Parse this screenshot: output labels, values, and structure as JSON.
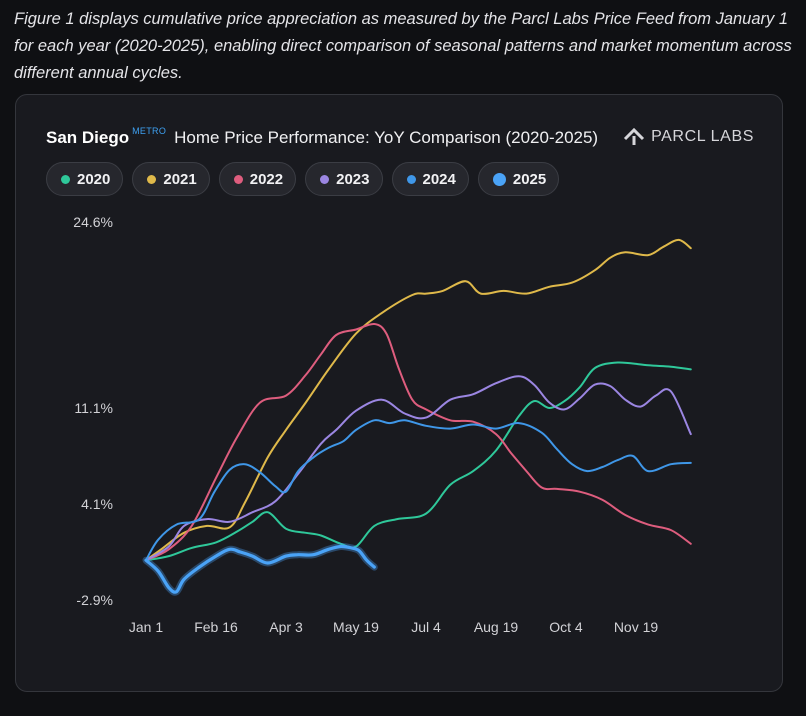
{
  "caption": "Figure 1 displays cumulative price appreciation as measured by the Parcl Labs Price Feed from January 1 for each year (2020-2025), enabling direct comparison of seasonal patterns and market momentum across different annual cycles.",
  "header": {
    "city": "San Diego",
    "badge": "METRO",
    "title": "Home Price Performance: YoY Comparison (2020-2025)"
  },
  "logo": {
    "text": "PARCL LABS",
    "icon": "parcl-labs-logo-icon"
  },
  "chart_data": {
    "type": "line",
    "xlabel": "",
    "ylabel": "",
    "x_ticks": [
      {
        "label": "Jan 1",
        "day": 0
      },
      {
        "label": "Feb 16",
        "day": 46
      },
      {
        "label": "Apr 3",
        "day": 92
      },
      {
        "label": "May 19",
        "day": 138
      },
      {
        "label": "Jul 4",
        "day": 184
      },
      {
        "label": "Aug 19",
        "day": 230
      },
      {
        "label": "Oct 4",
        "day": 276
      },
      {
        "label": "Nov 19",
        "day": 322
      }
    ],
    "y_ticks": [
      {
        "label": "24.6%",
        "value": 24.6
      },
      {
        "label": "11.1%",
        "value": 11.1
      },
      {
        "label": "4.1%",
        "value": 4.1
      },
      {
        "label": "-2.9%",
        "value": -2.9
      }
    ],
    "xlim": [
      0,
      362
    ],
    "grid": false,
    "legend_position": "top-left",
    "series": [
      {
        "name": "2020",
        "color": "#2fc89a",
        "highlight": false,
        "points": [
          [
            0,
            0
          ],
          [
            15,
            0.3
          ],
          [
            30,
            0.9
          ],
          [
            46,
            1.3
          ],
          [
            60,
            2.1
          ],
          [
            70,
            2.8
          ],
          [
            80,
            3.5
          ],
          [
            92,
            2.3
          ],
          [
            105,
            2.0
          ],
          [
            115,
            1.8
          ],
          [
            128,
            1.2
          ],
          [
            138,
            1.0
          ],
          [
            150,
            2.5
          ],
          [
            165,
            3.0
          ],
          [
            184,
            3.4
          ],
          [
            200,
            5.5
          ],
          [
            215,
            6.5
          ],
          [
            230,
            8.0
          ],
          [
            245,
            10.5
          ],
          [
            255,
            11.6
          ],
          [
            265,
            11.1
          ],
          [
            275,
            11.6
          ],
          [
            285,
            12.6
          ],
          [
            295,
            14.0
          ],
          [
            310,
            14.4
          ],
          [
            330,
            14.2
          ],
          [
            345,
            14.1
          ],
          [
            358,
            13.9
          ]
        ]
      },
      {
        "name": "2021",
        "color": "#dfb94a",
        "highlight": false,
        "points": [
          [
            0,
            0
          ],
          [
            10,
            0.8
          ],
          [
            25,
            2.0
          ],
          [
            40,
            2.5
          ],
          [
            55,
            2.4
          ],
          [
            65,
            4.2
          ],
          [
            80,
            7.5
          ],
          [
            92,
            9.5
          ],
          [
            105,
            11.5
          ],
          [
            120,
            13.9
          ],
          [
            138,
            16.5
          ],
          [
            155,
            18.0
          ],
          [
            175,
            19.3
          ],
          [
            184,
            19.4
          ],
          [
            195,
            19.6
          ],
          [
            210,
            20.3
          ],
          [
            220,
            19.4
          ],
          [
            235,
            19.6
          ],
          [
            250,
            19.4
          ],
          [
            265,
            19.9
          ],
          [
            280,
            20.2
          ],
          [
            295,
            21.1
          ],
          [
            305,
            22.0
          ],
          [
            315,
            22.4
          ],
          [
            330,
            22.2
          ],
          [
            340,
            22.8
          ],
          [
            350,
            23.3
          ],
          [
            358,
            22.7
          ]
        ]
      },
      {
        "name": "2022",
        "color": "#de5d7e",
        "highlight": false,
        "points": [
          [
            0,
            0
          ],
          [
            15,
            0.8
          ],
          [
            30,
            2.5
          ],
          [
            46,
            6.0
          ],
          [
            60,
            9.0
          ],
          [
            75,
            11.5
          ],
          [
            92,
            12.0
          ],
          [
            105,
            13.5
          ],
          [
            115,
            15.0
          ],
          [
            125,
            16.4
          ],
          [
            138,
            16.8
          ],
          [
            150,
            17.2
          ],
          [
            158,
            16.5
          ],
          [
            166,
            14.0
          ],
          [
            175,
            11.7
          ],
          [
            184,
            11.0
          ],
          [
            200,
            10.2
          ],
          [
            215,
            10.1
          ],
          [
            230,
            9.2
          ],
          [
            240,
            7.8
          ],
          [
            250,
            6.5
          ],
          [
            260,
            5.3
          ],
          [
            270,
            5.2
          ],
          [
            285,
            5.0
          ],
          [
            300,
            4.4
          ],
          [
            315,
            3.3
          ],
          [
            330,
            2.6
          ],
          [
            345,
            2.2
          ],
          [
            358,
            1.2
          ]
        ]
      },
      {
        "name": "2023",
        "color": "#9b86e2",
        "highlight": false,
        "points": [
          [
            0,
            0
          ],
          [
            15,
            1.0
          ],
          [
            25,
            2.5
          ],
          [
            40,
            3.0
          ],
          [
            55,
            2.8
          ],
          [
            70,
            3.5
          ],
          [
            85,
            4.3
          ],
          [
            100,
            6.3
          ],
          [
            115,
            8.5
          ],
          [
            125,
            9.5
          ],
          [
            138,
            10.9
          ],
          [
            155,
            11.7
          ],
          [
            170,
            10.7
          ],
          [
            184,
            10.4
          ],
          [
            200,
            11.7
          ],
          [
            215,
            12.1
          ],
          [
            230,
            12.9
          ],
          [
            245,
            13.4
          ],
          [
            255,
            12.8
          ],
          [
            265,
            11.5
          ],
          [
            275,
            11.0
          ],
          [
            285,
            11.8
          ],
          [
            295,
            12.8
          ],
          [
            305,
            12.7
          ],
          [
            315,
            11.7
          ],
          [
            325,
            11.2
          ],
          [
            335,
            12.0
          ],
          [
            345,
            12.3
          ],
          [
            358,
            9.2
          ]
        ]
      },
      {
        "name": "2024",
        "color": "#3f97e8",
        "highlight": false,
        "points": [
          [
            0,
            0
          ],
          [
            8,
            1.5
          ],
          [
            20,
            2.6
          ],
          [
            35,
            3.0
          ],
          [
            45,
            5.0
          ],
          [
            55,
            6.6
          ],
          [
            65,
            7.0
          ],
          [
            75,
            6.4
          ],
          [
            85,
            5.4
          ],
          [
            92,
            5.0
          ],
          [
            100,
            6.5
          ],
          [
            110,
            7.5
          ],
          [
            120,
            8.2
          ],
          [
            130,
            8.7
          ],
          [
            138,
            9.5
          ],
          [
            150,
            10.2
          ],
          [
            160,
            10.0
          ],
          [
            170,
            10.2
          ],
          [
            184,
            9.8
          ],
          [
            200,
            9.6
          ],
          [
            215,
            9.9
          ],
          [
            230,
            9.6
          ],
          [
            245,
            10.0
          ],
          [
            260,
            9.3
          ],
          [
            270,
            8.1
          ],
          [
            280,
            7.0
          ],
          [
            290,
            6.5
          ],
          [
            300,
            6.8
          ],
          [
            310,
            7.3
          ],
          [
            320,
            7.6
          ],
          [
            330,
            6.5
          ],
          [
            345,
            7.0
          ],
          [
            358,
            7.1
          ]
        ]
      },
      {
        "name": "2025",
        "color": "#4aa3f7",
        "highlight": true,
        "points": [
          [
            0,
            0
          ],
          [
            8,
            -0.8
          ],
          [
            15,
            -2.0
          ],
          [
            20,
            -2.3
          ],
          [
            25,
            -1.4
          ],
          [
            35,
            -0.5
          ],
          [
            46,
            0.3
          ],
          [
            55,
            0.8
          ],
          [
            62,
            0.6
          ],
          [
            70,
            0.3
          ],
          [
            80,
            -0.2
          ],
          [
            92,
            0.3
          ],
          [
            100,
            0.4
          ],
          [
            110,
            0.4
          ],
          [
            120,
            0.8
          ],
          [
            128,
            1.0
          ],
          [
            135,
            0.9
          ],
          [
            140,
            0.7
          ],
          [
            145,
            0.0
          ],
          [
            150,
            -0.5
          ]
        ]
      }
    ]
  }
}
